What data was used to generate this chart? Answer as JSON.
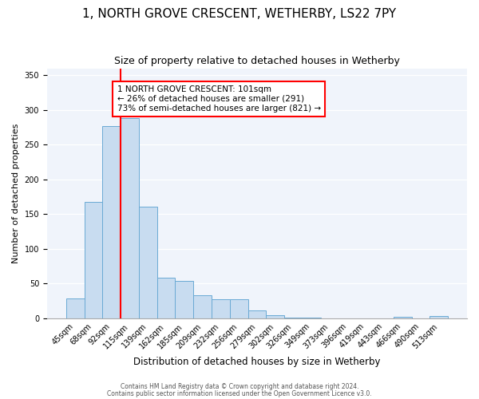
{
  "title": "1, NORTH GROVE CRESCENT, WETHERBY, LS22 7PY",
  "subtitle": "Size of property relative to detached houses in Wetherby",
  "xlabel": "Distribution of detached houses by size in Wetherby",
  "ylabel": "Number of detached properties",
  "categories": [
    "45sqm",
    "68sqm",
    "92sqm",
    "115sqm",
    "139sqm",
    "162sqm",
    "185sqm",
    "209sqm",
    "232sqm",
    "256sqm",
    "279sqm",
    "302sqm",
    "326sqm",
    "349sqm",
    "373sqm",
    "396sqm",
    "419sqm",
    "443sqm",
    "466sqm",
    "490sqm",
    "513sqm"
  ],
  "bar_heights": [
    29,
    168,
    277,
    288,
    161,
    58,
    54,
    33,
    27,
    27,
    11,
    5,
    1,
    1,
    0,
    0,
    0,
    0,
    2,
    0,
    3
  ],
  "bar_color": "#c8dcf0",
  "bar_edge_color": "#6aaad4",
  "vline_color": "red",
  "vline_index": 2.5,
  "annotation_text": "1 NORTH GROVE CRESCENT: 101sqm\n← 26% of detached houses are smaller (291)\n73% of semi-detached houses are larger (821) →",
  "annotation_box_color": "white",
  "annotation_box_edge_color": "red",
  "ylim": [
    0,
    360
  ],
  "yticks": [
    0,
    50,
    100,
    150,
    200,
    250,
    300,
    350
  ],
  "footnote1": "Contains HM Land Registry data © Crown copyright and database right 2024.",
  "footnote2": "Contains public sector information licensed under the Open Government Licence v3.0.",
  "title_fontsize": 11,
  "subtitle_fontsize": 9,
  "ylabel_fontsize": 8,
  "xlabel_fontsize": 8.5,
  "tick_fontsize": 7,
  "annotation_fontsize": 7.5,
  "footnote_fontsize": 5.5,
  "figsize": [
    6.0,
    5.0
  ],
  "dpi": 100,
  "bg_color": "#f0f4fb"
}
